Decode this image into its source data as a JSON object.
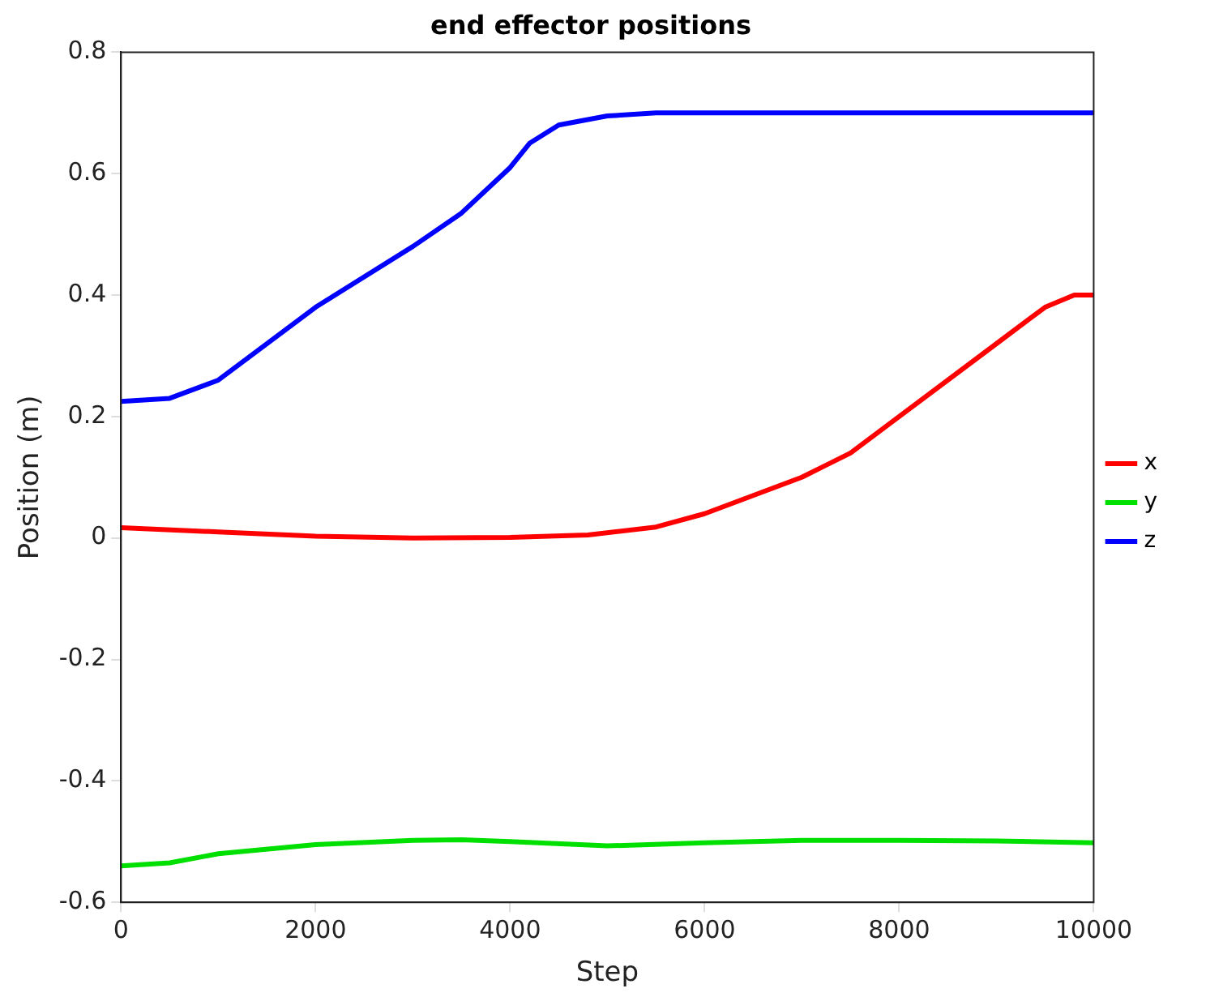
{
  "chart_data": {
    "type": "line",
    "title": "end effector positions",
    "xlabel": "Step",
    "ylabel": "Position (m)",
    "xlim": [
      0,
      10000
    ],
    "xticks": [
      0,
      2000,
      4000,
      6000,
      8000,
      10000
    ],
    "ylim": [
      -0.6,
      0.8
    ],
    "yticks": [
      -0.6,
      -0.4,
      -0.2,
      0,
      0.2,
      0.4,
      0.6,
      0.8
    ],
    "grid": false,
    "legend": "right",
    "marker": "none",
    "line_style": "solid",
    "series": [
      {
        "name": "x",
        "color": "#ff0000",
        "x": [
          0,
          1000,
          2000,
          3000,
          4000,
          4800,
          5500,
          6000,
          7000,
          7500,
          8000,
          9000,
          9500,
          9800,
          10000
        ],
        "values": [
          0.017,
          0.01,
          0.003,
          0,
          0.001,
          0.005,
          0.018,
          0.04,
          0.1,
          0.14,
          0.2,
          0.32,
          0.38,
          0.4,
          0.4
        ]
      },
      {
        "name": "y",
        "color": "#00e000",
        "x": [
          0,
          500,
          1000,
          2000,
          3000,
          3500,
          4000,
          5000,
          6000,
          7000,
          8000,
          9000,
          10000
        ],
        "values": [
          -0.54,
          -0.535,
          -0.52,
          -0.505,
          -0.498,
          -0.497,
          -0.5,
          -0.507,
          -0.502,
          -0.498,
          -0.498,
          -0.499,
          -0.502
        ]
      },
      {
        "name": "z",
        "color": "#0000ff",
        "x": [
          0,
          500,
          1000,
          2000,
          3000,
          3500,
          4000,
          4200,
          4500,
          5000,
          5500,
          10000
        ],
        "values": [
          0.225,
          0.23,
          0.26,
          0.38,
          0.48,
          0.535,
          0.61,
          0.65,
          0.68,
          0.695,
          0.7,
          0.7
        ]
      }
    ]
  }
}
